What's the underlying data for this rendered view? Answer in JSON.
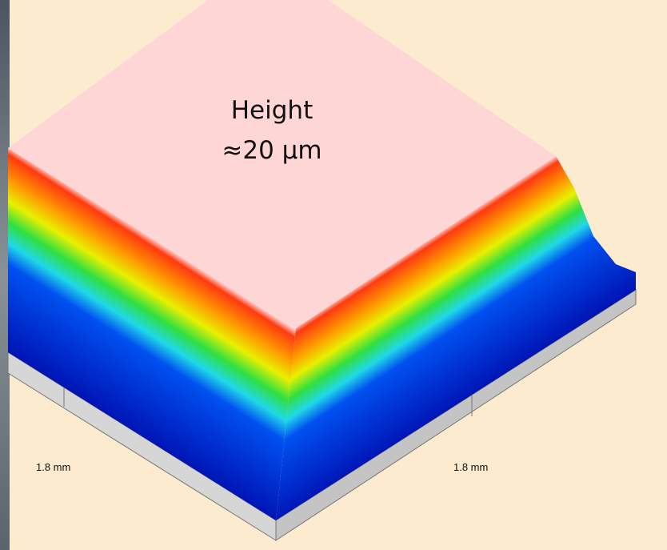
{
  "annotation": {
    "title": "Height",
    "value": "≈20 µm"
  },
  "axes": {
    "left_label": "1.8 mm",
    "right_label": "1.8 mm"
  }
}
